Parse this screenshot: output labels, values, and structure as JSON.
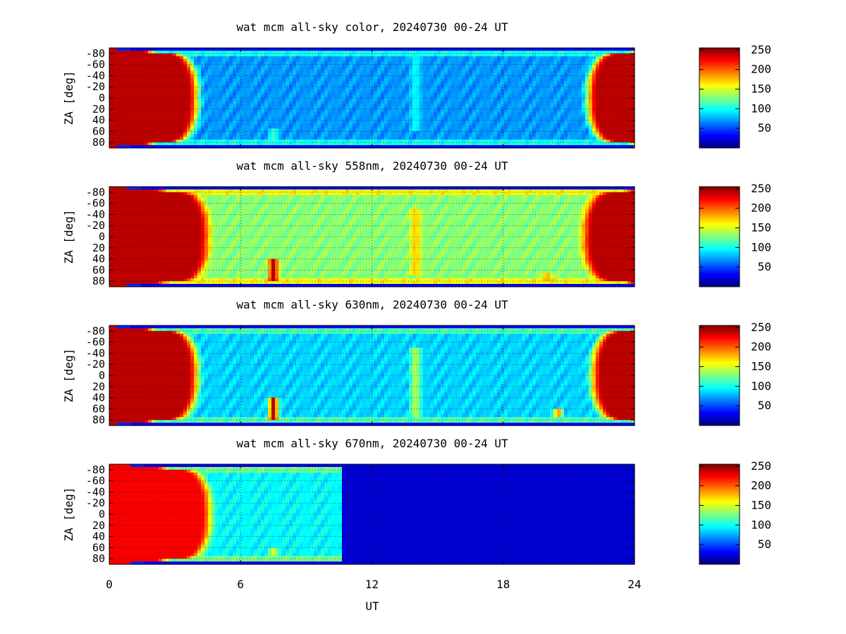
{
  "colors": {
    "frame": "#000000",
    "grid": "#000000",
    "colormap": [
      "#00007f",
      "#0000ff",
      "#007fff",
      "#00ffff",
      "#7fff7f",
      "#ffff00",
      "#ff7f00",
      "#ff0000",
      "#7f0000"
    ]
  },
  "chart_data": [
    {
      "type": "heatmap",
      "title": "wat mcm all-sky color, 20240730 00-24 UT",
      "ylabel": "ZA [deg]",
      "xlabel": "",
      "xlim": [
        0,
        24
      ],
      "ylim": [
        -90,
        90
      ],
      "yticks": [
        "-80",
        "-60",
        "-40",
        "-20",
        "0",
        "20",
        "40",
        "60",
        "80"
      ],
      "xticks": [],
      "grid": true,
      "colorbar": {
        "range": [
          0,
          255
        ],
        "ticks": [
          "250",
          "200",
          "150",
          "100",
          "50"
        ]
      },
      "day_boundaries_ut": [
        3.9,
        22.0
      ],
      "night_level": 70,
      "features": [
        {
          "ut": 7.5,
          "level": 110,
          "za_from": 55,
          "za_to": 80
        },
        {
          "ut": 14.0,
          "level": 100,
          "za_from": -80,
          "za_to": 60
        }
      ]
    },
    {
      "type": "heatmap",
      "title": "wat mcm all-sky 558nm, 20240730 00-24 UT",
      "ylabel": "ZA [deg]",
      "xlabel": "",
      "xlim": [
        0,
        24
      ],
      "ylim": [
        -90,
        90
      ],
      "yticks": [
        "-80",
        "-60",
        "-40",
        "-20",
        "0",
        "20",
        "40",
        "60",
        "80"
      ],
      "xticks": [],
      "grid": true,
      "colorbar": {
        "range": [
          0,
          255
        ],
        "ticks": [
          "250",
          "200",
          "150",
          "100",
          "50"
        ]
      },
      "day_boundaries_ut": [
        4.4,
        21.8
      ],
      "night_level": 130,
      "features": [
        {
          "ut": 7.5,
          "level": 245,
          "za_from": 40,
          "za_to": 80
        },
        {
          "ut": 14.0,
          "level": 180,
          "za_from": -50,
          "za_to": 70
        },
        {
          "ut": 20.0,
          "level": 185,
          "za_from": 65,
          "za_to": 80
        }
      ]
    },
    {
      "type": "heatmap",
      "title": "wat mcm all-sky 630nm, 20240730 00-24 UT",
      "ylabel": "ZA [deg]",
      "xlabel": "",
      "xlim": [
        0,
        24
      ],
      "ylim": [
        -90,
        90
      ],
      "yticks": [
        "-80",
        "-60",
        "-40",
        "-20",
        "0",
        "20",
        "40",
        "60",
        "80"
      ],
      "xticks": [],
      "grid": true,
      "colorbar": {
        "range": [
          0,
          255
        ],
        "ticks": [
          "250",
          "200",
          "150",
          "100",
          "50"
        ]
      },
      "day_boundaries_ut": [
        3.9,
        22.2
      ],
      "night_level": 85,
      "features": [
        {
          "ut": 7.5,
          "level": 245,
          "za_from": 40,
          "za_to": 80
        },
        {
          "ut": 14.0,
          "level": 150,
          "za_from": -50,
          "za_to": 75
        },
        {
          "ut": 20.5,
          "level": 190,
          "za_from": 60,
          "za_to": 75
        }
      ]
    },
    {
      "type": "heatmap",
      "title": "wat mcm all-sky 670nm, 20240730 00-24 UT",
      "ylabel": "ZA [deg]",
      "xlabel": "UT",
      "xlim": [
        0,
        24
      ],
      "ylim": [
        -90,
        90
      ],
      "yticks": [
        "-80",
        "-60",
        "-40",
        "-20",
        "0",
        "20",
        "40",
        "60",
        "80"
      ],
      "xticks": [
        "0",
        "6",
        "12",
        "18",
        "24"
      ],
      "grid": true,
      "colorbar": {
        "range": [
          0,
          255
        ],
        "ticks": [
          "250",
          "200",
          "150",
          "100",
          "50"
        ]
      },
      "day_boundaries_ut": [
        4.5,
        null
      ],
      "night_level": 95,
      "data_gap_after_ut": 10.6,
      "gap_level": 20,
      "features": [
        {
          "ut": 7.5,
          "level": 150,
          "za_from": 60,
          "za_to": 75
        }
      ]
    }
  ]
}
